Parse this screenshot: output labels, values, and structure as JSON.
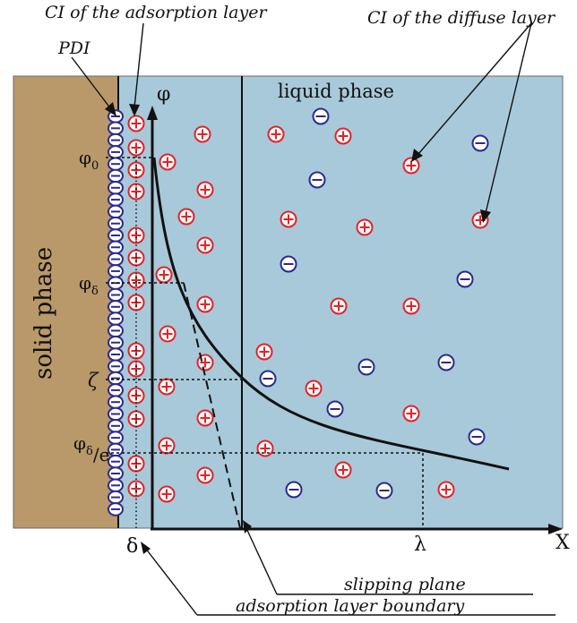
{
  "labels": {
    "ci_adsorption": "CI of the adsorption layer",
    "ci_diffuse": "CI of the diffuse layer",
    "pdi": "PDI",
    "liquid_phase": "liquid phase",
    "solid_phase": "solid phase",
    "phi_axis": "φ",
    "phi_0_base": "φ",
    "phi_0_sub": "0",
    "phi_delta_base": "φ",
    "phi_delta_sub": "δ",
    "zeta": "ζ",
    "phi_de_base": "φ",
    "phi_de_sub": "δ",
    "phi_de_tail": "/e",
    "x_axis": "X",
    "delta": "δ",
    "lambda": "λ",
    "slipping_plane": "slipping plane",
    "adsorption_boundary": "adsorption layer boundary"
  },
  "colors": {
    "solid": "#b9986a",
    "liquid": "#a8c9d9",
    "cation": "#e32228",
    "anion": "#2b2a8c",
    "line": "#111111"
  },
  "symbols": {
    "cation": "cation-plus-circle",
    "anion": "anion-minus-circle"
  }
}
